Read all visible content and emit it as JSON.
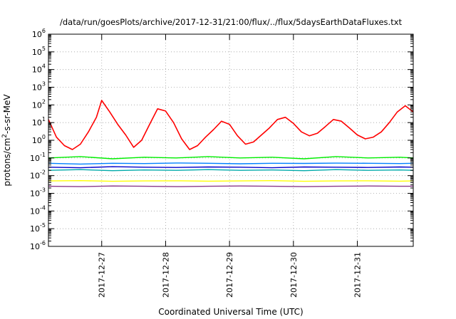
{
  "chart_data": {
    "type": "line",
    "title": "/data/run/goesPlots/archive/2017-12-31/21:00/flux/../flux/5daysEarthDataFluxes.txt",
    "xlabel": "Coordinated Universal Time (UTC)",
    "ylabel": "protons/cm²-s-sr-MeV",
    "xlim": [
      "2017-12-26T04:00",
      "2017-12-31T21:00"
    ],
    "ylim": [
      1e-06,
      1000000.0
    ],
    "yscale": "log",
    "x_ticks": [
      "2017-12-27",
      "2017-12-28",
      "2017-12-29",
      "2017-12-30",
      "2017-12-31"
    ],
    "y_ticks": [
      {
        "base": "10",
        "exp": "-6"
      },
      {
        "base": "10",
        "exp": "-5"
      },
      {
        "base": "10",
        "exp": "-4"
      },
      {
        "base": "10",
        "exp": "-3"
      },
      {
        "base": "10",
        "exp": "-2"
      },
      {
        "base": "10",
        "exp": "-1"
      },
      {
        "base": "10",
        "exp": "0"
      },
      {
        "base": "10",
        "exp": "1"
      },
      {
        "base": "10",
        "exp": "2"
      },
      {
        "base": "10",
        "exp": "3"
      },
      {
        "base": "10",
        "exp": "4"
      },
      {
        "base": "10",
        "exp": "5"
      },
      {
        "base": "10",
        "exp": "6"
      }
    ],
    "grid": true,
    "legend": "none",
    "series": [
      {
        "color": "#ff0000",
        "x": [
          "2017-12-26T04:00",
          "2017-12-26T07:00",
          "2017-12-26T10:00",
          "2017-12-26T13:00",
          "2017-12-26T16:00",
          "2017-12-26T19:00",
          "2017-12-26T22:00",
          "2017-12-27T00:00",
          "2017-12-27T03:00",
          "2017-12-27T06:00",
          "2017-12-27T09:00",
          "2017-12-27T12:00",
          "2017-12-27T15:00",
          "2017-12-27T18:00",
          "2017-12-27T21:00",
          "2017-12-28T00:00",
          "2017-12-28T03:00",
          "2017-12-28T06:00",
          "2017-12-28T09:00",
          "2017-12-28T12:00",
          "2017-12-28T15:00",
          "2017-12-28T18:00",
          "2017-12-28T21:00",
          "2017-12-29T00:00",
          "2017-12-29T03:00",
          "2017-12-29T06:00",
          "2017-12-29T09:00",
          "2017-12-29T12:00",
          "2017-12-29T15:00",
          "2017-12-29T18:00",
          "2017-12-29T21:00",
          "2017-12-30T00:00",
          "2017-12-30T03:00",
          "2017-12-30T06:00",
          "2017-12-30T09:00",
          "2017-12-30T12:00",
          "2017-12-30T15:00",
          "2017-12-30T18:00",
          "2017-12-30T21:00",
          "2017-12-31T00:00",
          "2017-12-31T03:00",
          "2017-12-31T06:00",
          "2017-12-31T09:00",
          "2017-12-31T12:00",
          "2017-12-31T15:00",
          "2017-12-31T18:00",
          "2017-12-31T21:00"
        ],
        "values": [
          15,
          1.5,
          0.5,
          0.3,
          0.6,
          3,
          20,
          180,
          40,
          8,
          2,
          0.4,
          1,
          8,
          60,
          45,
          10,
          1.2,
          0.3,
          0.5,
          1.5,
          4,
          12,
          8,
          1.8,
          0.6,
          0.8,
          2,
          5,
          15,
          20,
          9,
          3,
          1.8,
          2.5,
          6,
          15,
          12,
          5,
          2,
          1.2,
          1.5,
          3,
          10,
          40,
          90,
          40
        ]
      },
      {
        "color": "#00ee00",
        "x": [
          "2017-12-26T04:00",
          "2017-12-26T16:00",
          "2017-12-27T04:00",
          "2017-12-27T16:00",
          "2017-12-28T04:00",
          "2017-12-28T16:00",
          "2017-12-29T04:00",
          "2017-12-29T16:00",
          "2017-12-30T04:00",
          "2017-12-30T16:00",
          "2017-12-31T04:00",
          "2017-12-31T16:00",
          "2017-12-31T21:00"
        ],
        "values": [
          0.1,
          0.12,
          0.09,
          0.11,
          0.1,
          0.12,
          0.1,
          0.11,
          0.09,
          0.12,
          0.1,
          0.11,
          0.1
        ]
      },
      {
        "color": "#0080ff",
        "x": [
          "2017-12-26T04:00",
          "2017-12-26T16:00",
          "2017-12-27T04:00",
          "2017-12-27T16:00",
          "2017-12-28T04:00",
          "2017-12-28T16:00",
          "2017-12-29T04:00",
          "2017-12-29T16:00",
          "2017-12-30T04:00",
          "2017-12-30T16:00",
          "2017-12-31T04:00",
          "2017-12-31T16:00",
          "2017-12-31T21:00"
        ],
        "values": [
          0.05,
          0.045,
          0.05,
          0.048,
          0.052,
          0.05,
          0.047,
          0.05,
          0.049,
          0.051,
          0.05,
          0.048,
          0.05
        ]
      },
      {
        "color": "#00aaaa",
        "x": [
          "2017-12-26T04:00",
          "2017-12-26T16:00",
          "2017-12-27T04:00",
          "2017-12-27T16:00",
          "2017-12-28T04:00",
          "2017-12-28T16:00",
          "2017-12-29T04:00",
          "2017-12-29T16:00",
          "2017-12-30T04:00",
          "2017-12-30T16:00",
          "2017-12-31T04:00",
          "2017-12-31T16:00",
          "2017-12-31T21:00"
        ],
        "values": [
          0.02,
          0.022,
          0.019,
          0.021,
          0.02,
          0.022,
          0.02,
          0.021,
          0.019,
          0.022,
          0.02,
          0.021,
          0.02
        ]
      },
      {
        "color": "#0000cc",
        "x": [
          "2017-12-26T04:00",
          "2017-12-26T16:00",
          "2017-12-27T04:00",
          "2017-12-27T16:00",
          "2017-12-28T04:00",
          "2017-12-28T16:00",
          "2017-12-29T04:00",
          "2017-12-29T16:00",
          "2017-12-30T04:00",
          "2017-12-30T16:00",
          "2017-12-31T04:00",
          "2017-12-31T16:00",
          "2017-12-31T21:00"
        ],
        "values": [
          0.03,
          0.028,
          0.032,
          0.03,
          0.029,
          0.031,
          0.03,
          0.028,
          0.031,
          0.03,
          0.029,
          0.031,
          0.03
        ]
      },
      {
        "color": "#ffff00",
        "x": [
          "2017-12-26T04:00",
          "2017-12-26T16:00",
          "2017-12-27T04:00",
          "2017-12-27T16:00",
          "2017-12-28T04:00",
          "2017-12-28T16:00",
          "2017-12-29T04:00",
          "2017-12-29T16:00",
          "2017-12-30T04:00",
          "2017-12-30T16:00",
          "2017-12-31T04:00",
          "2017-12-31T16:00",
          "2017-12-31T21:00"
        ],
        "values": [
          0.005,
          0.0052,
          0.0048,
          0.005,
          0.0051,
          0.0049,
          0.005,
          0.0052,
          0.0048,
          0.005,
          0.0051,
          0.0049,
          0.005
        ]
      },
      {
        "color": "#8b3a8b",
        "x": [
          "2017-12-26T04:00",
          "2017-12-26T16:00",
          "2017-12-27T04:00",
          "2017-12-27T16:00",
          "2017-12-28T04:00",
          "2017-12-28T16:00",
          "2017-12-29T04:00",
          "2017-12-29T16:00",
          "2017-12-30T04:00",
          "2017-12-30T16:00",
          "2017-12-31T04:00",
          "2017-12-31T16:00",
          "2017-12-31T21:00"
        ],
        "values": [
          0.0025,
          0.0024,
          0.0026,
          0.0025,
          0.0024,
          0.0025,
          0.0026,
          0.0025,
          0.0024,
          0.0025,
          0.0026,
          0.0025,
          0.0025
        ]
      }
    ]
  }
}
